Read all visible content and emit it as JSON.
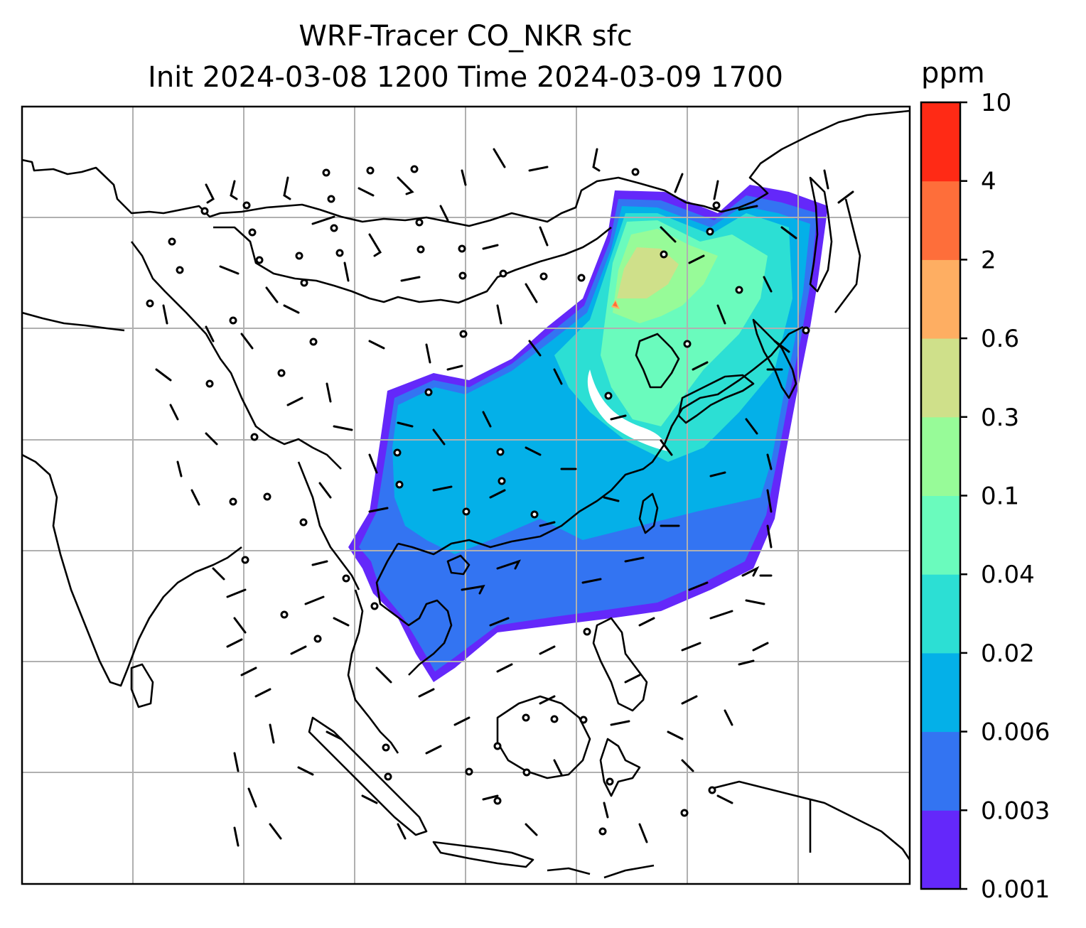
{
  "title_line1": "WRF-Tracer CO_NKR sfc",
  "title_line2": "Init 2024-03-08 1200 Time 2024-03-09 1700",
  "colorbar": {
    "unit": "ppm",
    "levels": [
      "0.001",
      "0.003",
      "0.006",
      "0.02",
      "0.04",
      "0.1",
      "0.3",
      "0.6",
      "2",
      "4",
      "10"
    ],
    "colors": [
      "#6428fa",
      "#3374f2",
      "#04b0e8",
      "#2cdfd4",
      "#6afbbd",
      "#97fb98",
      "#cfe08a",
      "#feae62",
      "#fe6e3a",
      "#ff2a15"
    ]
  },
  "map": {
    "field": "CO_NKR tracer concentration",
    "level": "sfc",
    "overlay": "wind barbs",
    "gridlines": true
  }
}
